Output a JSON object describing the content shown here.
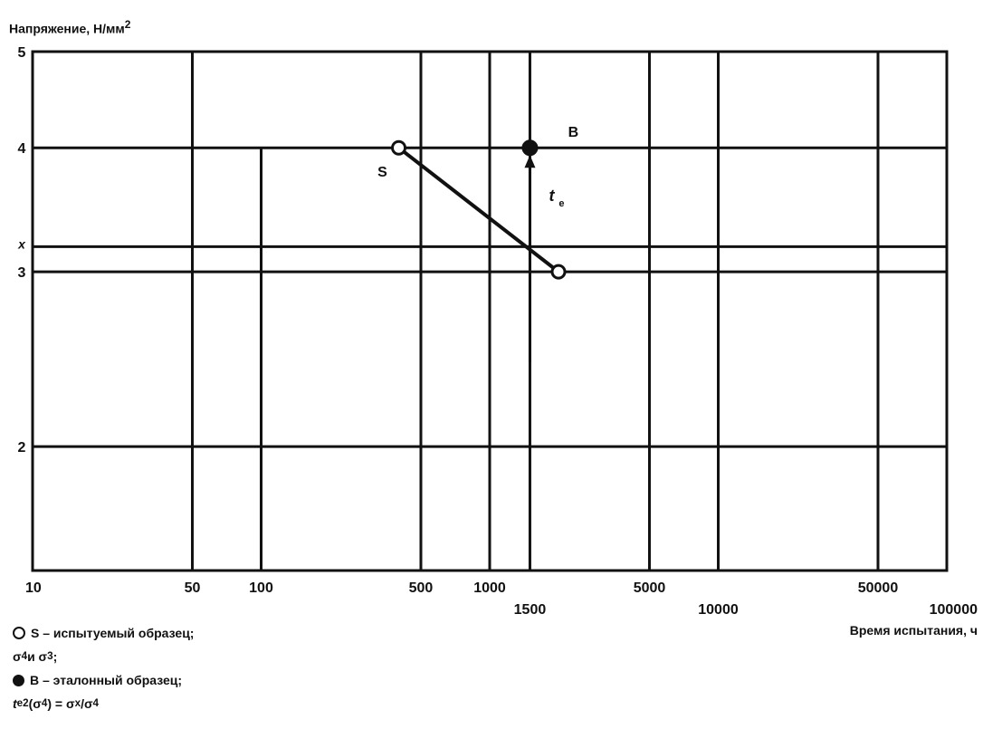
{
  "chart_data": {
    "type": "line",
    "title": "",
    "ylabel": "Напряжение, Н/мм",
    "ylabel_sup": "2",
    "xlabel": "Время испытания, ч",
    "x_scale": "log",
    "y_scale": "log",
    "xlim": [
      10,
      100000
    ],
    "ylim": [
      1.5,
      5
    ],
    "x_ticks": [
      {
        "label": "10",
        "value": 10
      },
      {
        "label": "50",
        "value": 50
      },
      {
        "label": "100",
        "value": 100
      },
      {
        "label": "500",
        "value": 500
      },
      {
        "label": "1000",
        "value": 1000
      },
      {
        "label": "1500",
        "value": 1500
      },
      {
        "label": "5000",
        "value": 5000
      },
      {
        "label": "10000",
        "value": 10000
      },
      {
        "label": "50000",
        "value": 50000
      },
      {
        "label": "100000",
        "value": 100000
      }
    ],
    "y_ticks": [
      {
        "label": "2",
        "value": 2
      },
      {
        "label": "3",
        "value": 3
      },
      {
        "label": "4",
        "value": 4
      },
      {
        "label": "5",
        "value": 5
      }
    ],
    "y_extra_label": {
      "label": "x",
      "value": 3.18
    },
    "grid": true,
    "series": [
      {
        "marker": "open",
        "points": [
          {
            "x": 400,
            "y": 4.0
          },
          {
            "x": 2000,
            "y": 3.0
          }
        ]
      },
      {
        "marker": "filled",
        "points": [
          {
            "x": 1500,
            "y": 4.0
          }
        ]
      }
    ],
    "arrow": {
      "x": 1500,
      "y_from": 3.0,
      "y_to": 4.0
    },
    "annotations": [
      {
        "text": "S",
        "x": 400,
        "y": 4.0
      },
      {
        "text": "B",
        "x": 1500,
        "y": 4.0
      },
      {
        "text": "t",
        "sub": "e",
        "x": 1500,
        "y": 3.55
      }
    ]
  },
  "legend": {
    "line1": "S – испытуемый образец;",
    "line2_a": "σ",
    "line2_a_sub": "4",
    "line2_b": " и σ",
    "line2_b_sub": "3",
    "line2_c": ";",
    "line3": "B – эталонный образец;",
    "line4_a": "t",
    "line4_a_sub": "e2",
    "line4_b": "(σ",
    "line4_b_sub": "4",
    "line4_c": ") = σ",
    "line4_c_sub": "x",
    "line4_d": "/σ",
    "line4_d_sub": "4"
  }
}
